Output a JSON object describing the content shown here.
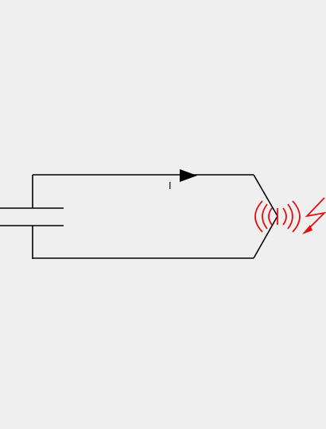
{
  "diagram": {
    "current_label": "I",
    "colors": {
      "background": "#efefef",
      "wire": "#000000",
      "emission": "#e01010"
    },
    "icons": {
      "capacitor": "capacitor-symbol",
      "current_arrow": "current-direction-arrow",
      "radiation": "radio-waves-icon",
      "lightning": "lightning-bolt-icon"
    }
  }
}
